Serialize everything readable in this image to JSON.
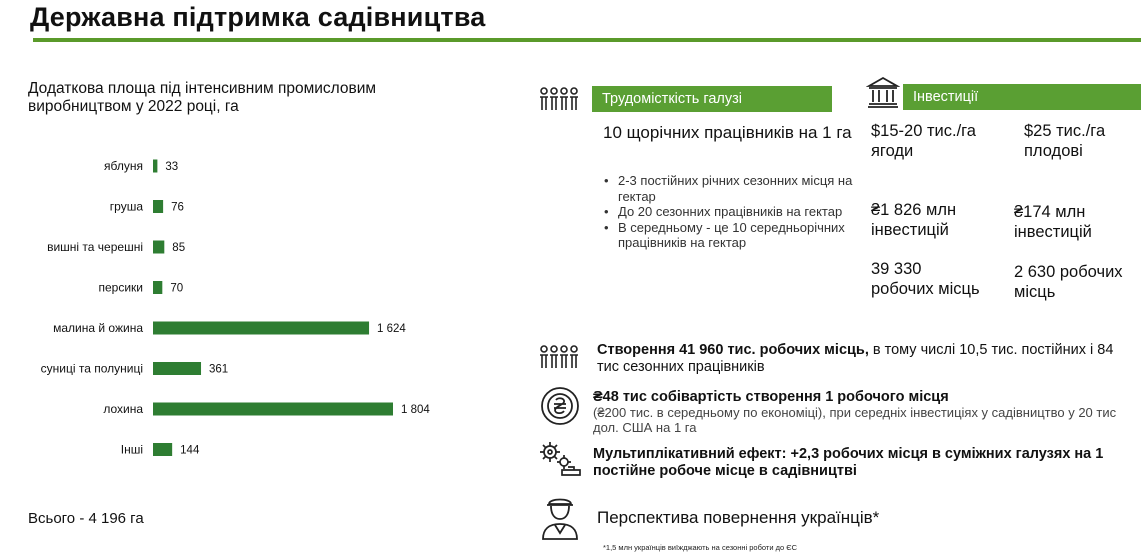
{
  "title": "Державна підтримка садівництва",
  "chart_data": {
    "type": "bar",
    "orientation": "horizontal",
    "title": "Додаткова площа під інтенсивним промисловим виробництвом у 2022 році, га",
    "categories": [
      "яблуня",
      "груша",
      "вишні та черешні",
      "персики",
      "малина й ожина",
      "суниці та полуниці",
      "лохина",
      "Інші"
    ],
    "values": [
      33,
      76,
      85,
      70,
      1624,
      361,
      1804,
      144
    ],
    "value_labels": [
      "33",
      "76",
      "85",
      "70",
      "1 624",
      "361",
      "1 804",
      "144"
    ],
    "bar_color": "#2e7d32",
    "xlim": [
      0,
      1804
    ],
    "grid": false,
    "total_label": "Всього - 4 196 га"
  },
  "labor": {
    "header": "Трудомісткість галузі",
    "icon": "workers-icon",
    "main": "10 щорічних працівників на 1 га",
    "bullets": [
      "2-3 постійних річних сезонних місця на гектар",
      "До 20 сезонних працівників на гектар",
      "В середньому  - це 10 середньорічних працівників на гектар"
    ]
  },
  "investments": {
    "header": "Інвестиції",
    "icon": "bank-icon",
    "berries": "$15-20 тис./га ягоди",
    "fruit": "$25 тис./га плодові",
    "mil1": "₴1 826 млн інвестицій",
    "mil2": "₴174 млн інвестицій",
    "jobs1": "39 330 робочих місць",
    "jobs2": "2 630 робочих місць"
  },
  "points": {
    "p1_bold": "Створення 41 960 тис. робочих місць,",
    "p1_rest": " в тому числі 10,5 тис. постійних і 84 тис сезонних працівників",
    "p2_bold": "₴48 тис собівартість створення 1 робочого місця",
    "p2_sub": "(₴200 тис. в середньому по економіці), при середніх інвестиціях у садівництво у 20 тис дол. США на 1 га",
    "p3": "Мультиплікативний ефект: +2,3 робочих місця в суміжних галузях на 1 постійне робоче місце в садівництві",
    "p4": "Перспектива повернення українців*",
    "footnote": "*1,5 млн українців виїжджають на сезонні роботи до ЄС"
  },
  "colors": {
    "accent_green": "#5a9f33",
    "bar_green": "#2e7d32",
    "rule_green": "#5a9a2a"
  }
}
